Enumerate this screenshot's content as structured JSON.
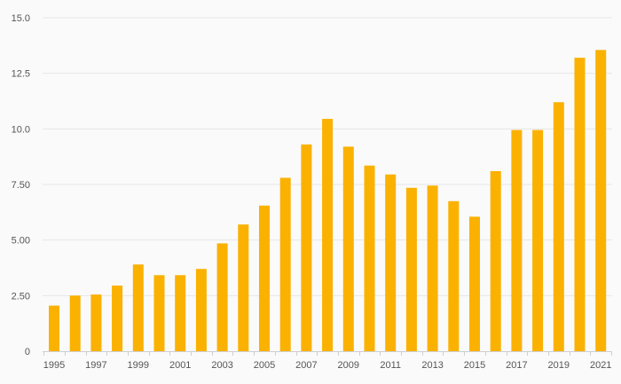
{
  "chart_data": {
    "type": "bar",
    "title": "",
    "xlabel": "",
    "ylabel": "",
    "categories": [
      "1995",
      "1996",
      "1997",
      "1998",
      "1999",
      "2000",
      "2001",
      "2002",
      "2003",
      "2004",
      "2005",
      "2006",
      "2007",
      "2008",
      "2009",
      "2010",
      "2011",
      "2012",
      "2013",
      "2014",
      "2015",
      "2016",
      "2017",
      "2018",
      "2019",
      "2020",
      "2021"
    ],
    "values": [
      2.05,
      2.5,
      2.55,
      2.95,
      3.9,
      3.42,
      3.42,
      3.7,
      4.85,
      5.7,
      6.55,
      7.8,
      9.3,
      10.45,
      9.2,
      8.35,
      7.95,
      7.35,
      7.45,
      6.75,
      6.05,
      8.1,
      9.95,
      9.95,
      11.2,
      13.2,
      13.55
    ],
    "ylim": [
      0,
      15
    ],
    "y_ticks": [
      0,
      2.5,
      5,
      7.5,
      10,
      12.5,
      15
    ],
    "y_tick_labels": [
      "0",
      "2.50",
      "5.00",
      "7.50",
      "10.0",
      "12.5",
      "15.0"
    ],
    "x_tick_labels": [
      "1995",
      "1997",
      "1999",
      "2001",
      "2003",
      "2005",
      "2007",
      "2009",
      "2011",
      "2013",
      "2015",
      "2017",
      "2019",
      "2021"
    ],
    "grid": true,
    "legend": "none",
    "bar_color": "#fbb100",
    "grid_color": "#e6e6e6",
    "axis_color": "#cfcfcf"
  }
}
